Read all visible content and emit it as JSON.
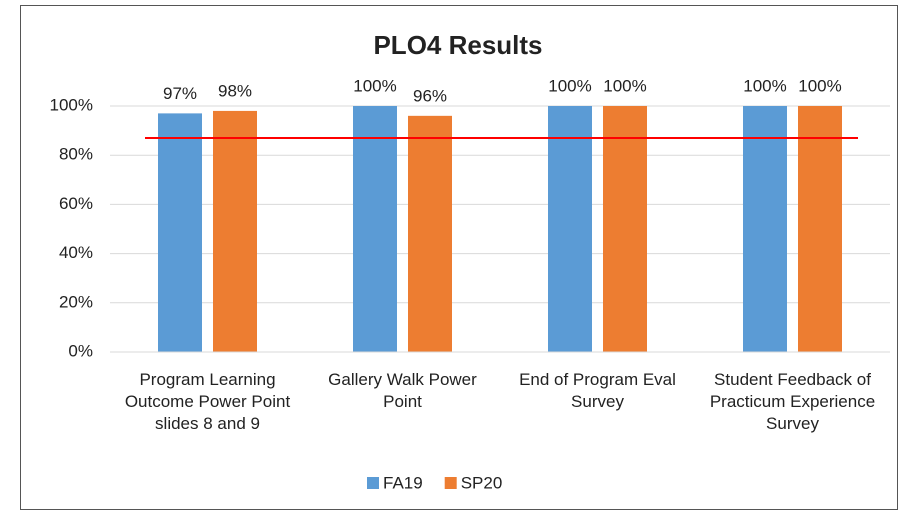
{
  "chart_data": {
    "type": "bar",
    "title": "PLO4 Results",
    "categories": [
      "Program Learning Outcome Power Point slides 8 and 9",
      "Gallery Walk Power Point",
      "End of Program Eval Survey",
      "Student Feedback of Practicum Experience Survey"
    ],
    "series": [
      {
        "name": "FA19",
        "color": "#5b9bd5",
        "values": [
          97,
          100,
          100,
          100
        ],
        "value_labels": [
          "97%",
          "100%",
          "100%",
          "100%"
        ]
      },
      {
        "name": "SP20",
        "color": "#ed7d31",
        "values": [
          98,
          96,
          100,
          100
        ],
        "value_labels": [
          "98%",
          "96%",
          "100%",
          "100%"
        ]
      }
    ],
    "ylim": [
      0,
      100
    ],
    "yticks": [
      {
        "value": 0,
        "label": "0%"
      },
      {
        "value": 20,
        "label": "20%"
      },
      {
        "value": 40,
        "label": "40%"
      },
      {
        "value": 60,
        "label": "60%"
      },
      {
        "value": 80,
        "label": "80%"
      },
      {
        "value": 100,
        "label": "100%"
      }
    ],
    "grid": true,
    "reference_line": {
      "value": 87,
      "color": "#ff0000"
    },
    "legend": "bottom"
  }
}
